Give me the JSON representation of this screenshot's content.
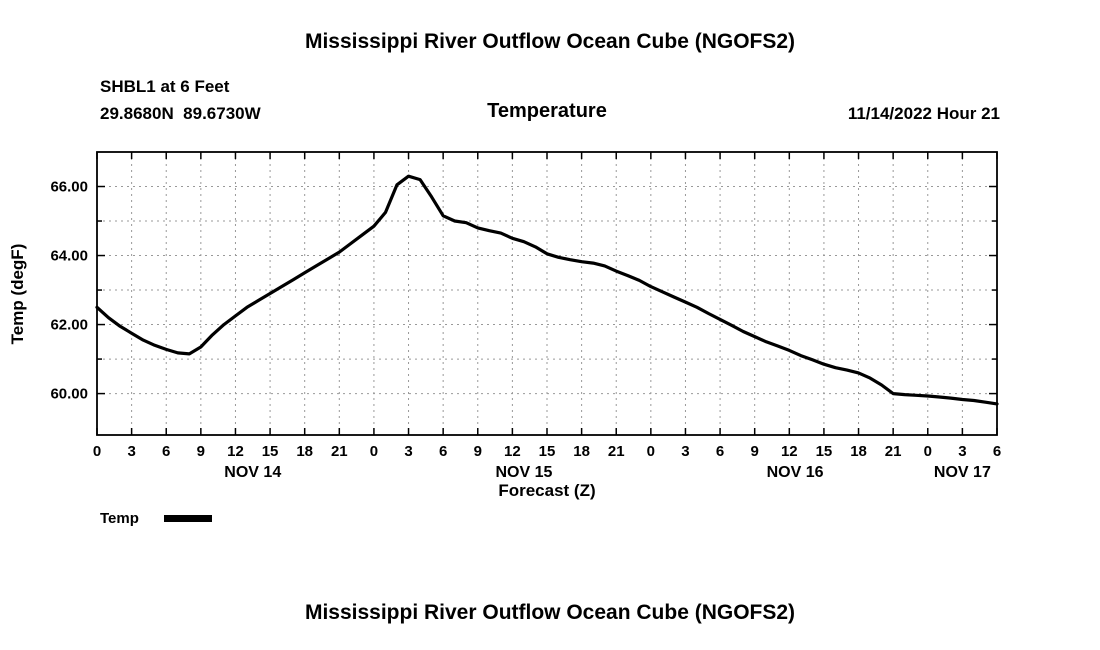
{
  "titles": {
    "top": "Mississippi River Outflow Ocean Cube (NGOFS2)",
    "bottom": "Mississippi River Outflow Ocean Cube (NGOFS2)"
  },
  "header": {
    "station": "SHBL1 at 6 Feet",
    "coordinates": "29.8680N  89.6730W",
    "plot_title": "Temperature",
    "run_time": "11/14/2022 Hour 21"
  },
  "legend": {
    "label": "Temp",
    "line_color": "#000000"
  },
  "chart_data": {
    "type": "line",
    "title": "Temperature",
    "xlabel": "Forecast (Z)",
    "ylabel": "Temp (degF)",
    "xlim": [
      0,
      78
    ],
    "ylim": [
      58.8,
      67.0
    ],
    "grid": true,
    "legend_position": "bottom-left",
    "ytick_values": [
      60,
      62,
      64,
      66
    ],
    "ytick_labels": [
      "60.00",
      "62.00",
      "64.00",
      "66.00"
    ],
    "ygrid": [
      60,
      61,
      62,
      63,
      64,
      65,
      66
    ],
    "xtick_hours": [
      0,
      3,
      6,
      9,
      12,
      15,
      18,
      21,
      24,
      27,
      30,
      33,
      36,
      39,
      42,
      45,
      48,
      51,
      54,
      57,
      60,
      63,
      66,
      69,
      72,
      75,
      78
    ],
    "xtick_labels": [
      "0",
      "3",
      "6",
      "9",
      "12",
      "15",
      "18",
      "21",
      "0",
      "3",
      "6",
      "9",
      "12",
      "15",
      "18",
      "21",
      "0",
      "3",
      "6",
      "9",
      "12",
      "15",
      "18",
      "21",
      "0",
      "3",
      "6"
    ],
    "day_labels": [
      {
        "label": "NOV 14",
        "hour": 13.5
      },
      {
        "label": "NOV 15",
        "hour": 37
      },
      {
        "label": "NOV 16",
        "hour": 60.5
      },
      {
        "label": "NOV 17",
        "hour": 75
      }
    ],
    "series": [
      {
        "name": "Temp",
        "color": "#000000",
        "x": [
          0,
          1,
          2,
          3,
          4,
          5,
          6,
          7,
          8,
          9,
          10,
          11,
          12,
          13,
          14,
          15,
          16,
          17,
          18,
          19,
          20,
          21,
          22,
          23,
          24,
          25,
          26,
          27,
          28,
          29,
          30,
          31,
          32,
          33,
          34,
          35,
          36,
          37,
          38,
          39,
          40,
          41,
          42,
          43,
          44,
          45,
          46,
          47,
          48,
          49,
          50,
          51,
          52,
          53,
          54,
          55,
          56,
          57,
          58,
          59,
          60,
          61,
          62,
          63,
          64,
          65,
          66,
          67,
          68,
          69,
          70,
          71,
          72,
          73,
          74,
          75,
          76,
          77,
          78
        ],
        "y": [
          62.5,
          62.2,
          61.95,
          61.75,
          61.55,
          61.4,
          61.28,
          61.18,
          61.15,
          61.35,
          61.7,
          62.0,
          62.25,
          62.5,
          62.7,
          62.9,
          63.1,
          63.3,
          63.5,
          63.7,
          63.9,
          64.1,
          64.35,
          64.6,
          64.85,
          65.25,
          66.05,
          66.3,
          66.2,
          65.7,
          65.15,
          65.0,
          64.95,
          64.8,
          64.72,
          64.65,
          64.5,
          64.4,
          64.25,
          64.05,
          63.95,
          63.88,
          63.82,
          63.78,
          63.7,
          63.55,
          63.42,
          63.28,
          63.1,
          62.95,
          62.8,
          62.65,
          62.5,
          62.32,
          62.15,
          61.98,
          61.8,
          61.65,
          61.5,
          61.38,
          61.25,
          61.1,
          60.98,
          60.85,
          60.75,
          60.68,
          60.6,
          60.45,
          60.25,
          60.0,
          59.97,
          59.95,
          59.93,
          59.9,
          59.87,
          59.83,
          59.8,
          59.75,
          59.7
        ]
      }
    ]
  }
}
